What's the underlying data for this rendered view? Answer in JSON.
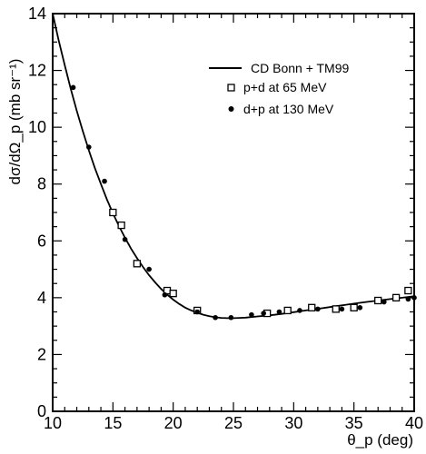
{
  "chart_data": {
    "type": "scatter",
    "xlabel": "θ_p (deg)",
    "ylabel": "dσ/dΩ_p (mb sr⁻¹)",
    "xlim": [
      10,
      40
    ],
    "ylim": [
      0,
      14
    ],
    "x_ticks": [
      "10",
      "15",
      "20",
      "25",
      "30",
      "35",
      "40"
    ],
    "y_ticks": [
      "0",
      "2",
      "4",
      "6",
      "8",
      "10",
      "12",
      "14"
    ],
    "grid": false,
    "legend_position": "top-right",
    "series": [
      {
        "name": "CD Bonn + TM99",
        "kind": "line",
        "x": [
          10.0,
          10.5,
          11.0,
          11.5,
          12.0,
          12.5,
          13.0,
          13.5,
          14.0,
          14.5,
          15.0,
          15.5,
          16.0,
          16.5,
          17.0,
          17.5,
          18.0,
          18.5,
          19.0,
          19.5,
          20.0,
          20.5,
          21.0,
          21.5,
          22.0,
          22.5,
          23.0,
          23.5,
          24.0,
          24.5,
          25.0,
          25.5,
          26.0,
          27.0,
          28.0,
          29.0,
          30.0,
          31.0,
          32.0,
          33.0,
          34.0,
          35.0,
          36.0,
          37.0,
          38.0,
          39.0,
          40.0
        ],
        "y": [
          14.0,
          13.06,
          12.18,
          11.35,
          10.58,
          9.86,
          9.19,
          8.57,
          8.0,
          7.46,
          6.97,
          6.52,
          6.11,
          5.73,
          5.39,
          5.08,
          4.79,
          4.54,
          4.31,
          4.11,
          3.93,
          3.78,
          3.65,
          3.55,
          3.47,
          3.4,
          3.35,
          3.31,
          3.29,
          3.28,
          3.28,
          3.29,
          3.3,
          3.34,
          3.38,
          3.43,
          3.49,
          3.55,
          3.61,
          3.67,
          3.73,
          3.79,
          3.85,
          3.9,
          3.95,
          4.0,
          4.05
        ]
      },
      {
        "name": "p+d at 65 MeV",
        "kind": "open-square",
        "x": [
          15.0,
          15.7,
          17.0,
          19.5,
          20.0,
          22.0,
          27.8,
          29.5,
          31.5,
          33.5,
          35.0,
          37.0,
          38.5,
          39.5
        ],
        "y": [
          7.0,
          6.55,
          5.2,
          4.25,
          4.15,
          3.55,
          3.45,
          3.55,
          3.65,
          3.6,
          3.65,
          3.9,
          4.0,
          4.25
        ]
      },
      {
        "name": "d+p at 130 MeV",
        "kind": "filled-dot",
        "x": [
          11.7,
          13.0,
          14.3,
          16.0,
          18.0,
          19.3,
          22.0,
          23.5,
          24.8,
          26.5,
          27.5,
          28.8,
          30.5,
          32.0,
          34.0,
          35.5,
          37.5,
          39.5,
          40.0
        ],
        "y": [
          11.4,
          9.3,
          8.1,
          6.05,
          5.0,
          4.1,
          3.5,
          3.3,
          3.3,
          3.4,
          3.45,
          3.5,
          3.55,
          3.6,
          3.6,
          3.65,
          3.85,
          3.95,
          4.0
        ]
      }
    ]
  }
}
